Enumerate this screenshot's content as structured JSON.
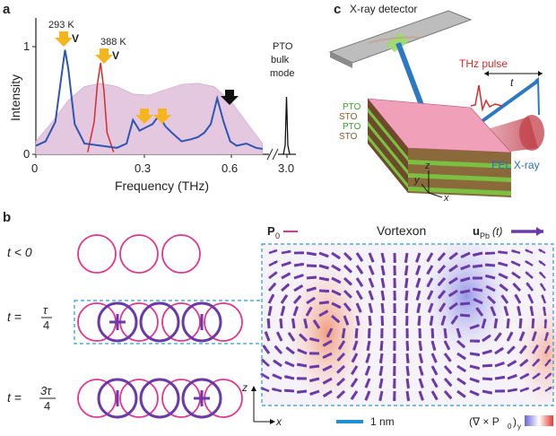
{
  "panels": {
    "a": "a",
    "b": "b",
    "c": "c"
  },
  "panel_a": {
    "ylabel": "Intensity",
    "xlabel": "Frequency (THz)",
    "y_ticks": [
      "0",
      "1"
    ],
    "x_ticks": [
      "0",
      "0.3",
      "0.6",
      "3.0"
    ],
    "annotations": {
      "t293": "293 K",
      "t388": "388 K",
      "v1": "V",
      "v2": "V",
      "pto": "PTO",
      "bulk": "bulk",
      "mode": "mode"
    },
    "colors": {
      "blue": "#2f55b4",
      "red": "#d42d2d",
      "fill": "#e3c8df",
      "yellow": "#f5b51f",
      "black": "#111111"
    }
  },
  "chart_data": {
    "type": "line",
    "xlabel": "Frequency (THz)",
    "ylabel": "Intensity",
    "xlim": [
      0,
      0.72
    ],
    "ylim": [
      0,
      1.1
    ],
    "series": [
      {
        "x": [
          0.0,
          0.03,
          0.06,
          0.08,
          0.09,
          0.1,
          0.12,
          0.15,
          0.2,
          0.25,
          0.28,
          0.3,
          0.32,
          0.34,
          0.36,
          0.38,
          0.4,
          0.42,
          0.45,
          0.48,
          0.5,
          0.52,
          0.54,
          0.56,
          0.58,
          0.6,
          0.62,
          0.65,
          0.68,
          0.7
        ],
        "values": [
          0.08,
          0.12,
          0.3,
          0.75,
          0.97,
          0.8,
          0.28,
          0.1,
          0.08,
          0.06,
          0.1,
          0.32,
          0.22,
          0.25,
          0.28,
          0.36,
          0.26,
          0.2,
          0.12,
          0.14,
          0.16,
          0.2,
          0.28,
          0.52,
          0.3,
          0.12,
          0.08,
          0.1,
          0.06,
          0.05
        ]
      },
      {
        "x": [
          0.16,
          0.18,
          0.19,
          0.2,
          0.21,
          0.22,
          0.24
        ],
        "values": [
          0.02,
          0.3,
          0.65,
          0.85,
          0.6,
          0.2,
          0.02
        ]
      },
      {
        "x": [
          0.0,
          0.05,
          0.1,
          0.15,
          0.2,
          0.25,
          0.3,
          0.35,
          0.4,
          0.45,
          0.5,
          0.55,
          0.6,
          0.65,
          0.7
        ],
        "values": [
          0.12,
          0.3,
          0.5,
          0.63,
          0.66,
          0.63,
          0.56,
          0.55,
          0.6,
          0.65,
          0.66,
          0.63,
          0.5,
          0.3,
          0.1
        ]
      }
    ]
  },
  "panel_b": {
    "t_lt0": "t < 0",
    "t_tau4": "t =",
    "t_3tau4": "t =",
    "frac1_num": "τ",
    "frac1_den": "4",
    "frac2_num": "3τ",
    "frac2_den": "4",
    "vortexon": "Vortexon",
    "p0": "P",
    "p0_sub": "0",
    "upb": "u",
    "upb_sub": "Pb",
    "upb_t": "(t)",
    "scale": "1 nm",
    "curl": "(∇ × P",
    "curl_sub": "0",
    "curl_end": ")",
    "curl_y": "y",
    "axis_z": "z",
    "axis_x": "x",
    "colors": {
      "pink": "#e0368f",
      "purple": "#6a3aa8",
      "dash": "#2a9ad0",
      "scale": "#1f8fd6"
    }
  },
  "panel_c": {
    "detector": "X-ray detector",
    "thz": "THz pulse",
    "t": "t",
    "fel": "FEL X-ray",
    "layers": [
      "PTO",
      "STO",
      "PTO",
      "STO"
    ],
    "axis_z": "z",
    "axis_y": "y",
    "axis_x": "x"
  }
}
